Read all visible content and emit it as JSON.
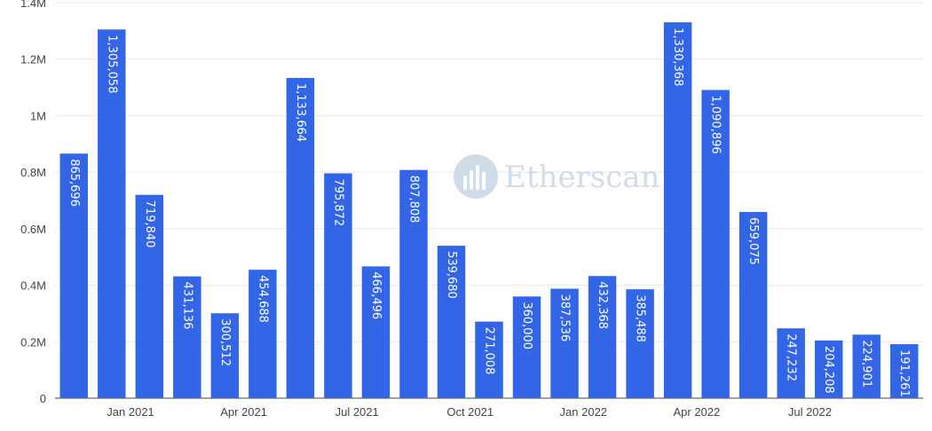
{
  "chart_data": {
    "type": "bar",
    "x": [
      "2020-11",
      "2020-12",
      "2021-01",
      "2021-02",
      "2021-03",
      "2021-04",
      "2021-05",
      "2021-06",
      "2021-07",
      "2021-08",
      "2021-09",
      "2021-10",
      "2021-11",
      "2021-12",
      "2022-01",
      "2022-02",
      "2022-03",
      "2022-04",
      "2022-05",
      "2022-06",
      "2022-07",
      "2022-08",
      "2022-09"
    ],
    "values": [
      865696,
      1305058,
      719840,
      431136,
      300512,
      454688,
      1133664,
      795872,
      466496,
      807808,
      539680,
      271008,
      360000,
      387536,
      432368,
      385488,
      1330368,
      1090896,
      659075,
      247232,
      204208,
      224901,
      191261
    ],
    "data_labels": [
      "865,696",
      "1,305,058",
      "719,840",
      "431,136",
      "300,512",
      "454,688",
      "1,133,664",
      "795,872",
      "466,496",
      "807,808",
      "539,680",
      "271,008",
      "360,000",
      "387,536",
      "432,368",
      "385,488",
      "1,330,368",
      "1,090,896",
      "659,075",
      "247,232",
      "204,208",
      "224,901",
      "191,261"
    ],
    "y_ticks": [
      {
        "value": 0,
        "label": "0"
      },
      {
        "value": 200000,
        "label": "0.2M"
      },
      {
        "value": 400000,
        "label": "0.4M"
      },
      {
        "value": 600000,
        "label": "0.6M"
      },
      {
        "value": 800000,
        "label": "0.8M"
      },
      {
        "value": 1000000,
        "label": "1M"
      },
      {
        "value": 1200000,
        "label": "1.2M"
      },
      {
        "value": 1400000,
        "label": "1.4M"
      }
    ],
    "x_ticks": [
      {
        "index": 2,
        "label": "Jan 2021"
      },
      {
        "index": 5,
        "label": "Apr 2021"
      },
      {
        "index": 8,
        "label": "Jul 2021"
      },
      {
        "index": 11,
        "label": "Oct 2021"
      },
      {
        "index": 14,
        "label": "Jan 2022"
      },
      {
        "index": 17,
        "label": "Apr 2022"
      },
      {
        "index": 20,
        "label": "Jul 2022"
      }
    ],
    "ylim": [
      0,
      1400000
    ],
    "grid": true,
    "bar_color": "#3366e6",
    "title": "",
    "xlabel": "",
    "ylabel": ""
  },
  "watermark": {
    "text": "Etherscan",
    "color": "#c9d6e6"
  }
}
